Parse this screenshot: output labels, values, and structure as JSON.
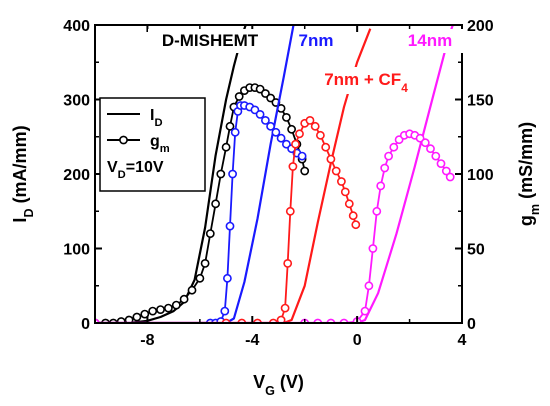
{
  "chart_data": {
    "type": "line",
    "xlabel": {
      "main": "V",
      "sub": "G",
      "unit": " (V)"
    },
    "ylabel_left": {
      "main": "I",
      "sub": "D",
      "unit": " (mA/mm)"
    },
    "ylabel_right": {
      "main": "g",
      "sub": "m",
      "unit": " (mS/mm)"
    },
    "xlim": [
      -10,
      4
    ],
    "ylim_left": [
      0,
      400
    ],
    "ylim_right": [
      0,
      200
    ],
    "x_ticks": [
      -8,
      -4,
      0,
      4
    ],
    "x_tick_labels": [
      "-8",
      "-4",
      "0",
      "4"
    ],
    "y_left_ticks": [
      0,
      100,
      200,
      300,
      400
    ],
    "y_left_tick_labels": [
      "0",
      "100",
      "200",
      "300",
      "400"
    ],
    "y_right_ticks": [
      0,
      50,
      100,
      150,
      200
    ],
    "y_right_tick_labels": [
      "0",
      "50",
      "100",
      "150",
      "200"
    ],
    "grid": false,
    "legend": {
      "placement": "left",
      "entries": [
        {
          "main": "I",
          "sub": "D",
          "style": "line"
        },
        {
          "main": "g",
          "sub": "m",
          "style": "line-circle"
        }
      ],
      "note": {
        "main": "V",
        "sub": "D",
        "tail": "=10V"
      }
    },
    "series": [
      {
        "name": "D-MISHEMT",
        "color": "#000000",
        "label": {
          "main": "D-MISHEMT"
        },
        "label_box": true,
        "id": [
          [
            -10,
            0
          ],
          [
            -9,
            0
          ],
          [
            -8.5,
            1
          ],
          [
            -8,
            3
          ],
          [
            -7.5,
            8
          ],
          [
            -7,
            16
          ],
          [
            -6.6,
            28
          ],
          [
            -6.2,
            58
          ],
          [
            -5.8,
            128
          ],
          [
            -5.4,
            225
          ],
          [
            -5.0,
            300
          ],
          [
            -4.7,
            345
          ],
          [
            -4.4,
            385
          ],
          [
            -4.2,
            405
          ]
        ],
        "gm": [
          [
            -10,
            0
          ],
          [
            -9.6,
            0
          ],
          [
            -9.3,
            0
          ],
          [
            -9.0,
            1
          ],
          [
            -8.7,
            2
          ],
          [
            -8.4,
            4
          ],
          [
            -8.1,
            6
          ],
          [
            -7.8,
            8
          ],
          [
            -7.5,
            9
          ],
          [
            -7.2,
            10
          ],
          [
            -6.9,
            12
          ],
          [
            -6.6,
            16
          ],
          [
            -6.3,
            22
          ],
          [
            -6.0,
            30
          ],
          [
            -5.8,
            40
          ],
          [
            -5.6,
            60
          ],
          [
            -5.4,
            80
          ],
          [
            -5.2,
            100
          ],
          [
            -5.0,
            118
          ],
          [
            -4.85,
            132
          ],
          [
            -4.7,
            145
          ],
          [
            -4.5,
            152
          ],
          [
            -4.3,
            156
          ],
          [
            -4.1,
            158
          ],
          [
            -3.9,
            158
          ],
          [
            -3.7,
            157
          ],
          [
            -3.5,
            154
          ],
          [
            -3.3,
            151
          ],
          [
            -3.1,
            148
          ],
          [
            -2.9,
            144
          ],
          [
            -2.7,
            138
          ],
          [
            -2.5,
            130
          ],
          [
            -2.3,
            120
          ],
          [
            -2.1,
            110
          ],
          [
            -2.0,
            102
          ]
        ]
      },
      {
        "name": "7nm",
        "color": "#1a1aff",
        "label": {
          "main": "7nm"
        },
        "label_box": false,
        "id": [
          [
            -10,
            0
          ],
          [
            -5.0,
            0
          ],
          [
            -4.7,
            6
          ],
          [
            -4.3,
            55
          ],
          [
            -3.8,
            140
          ],
          [
            -3.3,
            240
          ],
          [
            -2.8,
            330
          ],
          [
            -2.4,
            405
          ]
        ],
        "gm": [
          [
            -10,
            0
          ],
          [
            -5.6,
            0
          ],
          [
            -5.4,
            0
          ],
          [
            -5.2,
            1
          ],
          [
            -5.05,
            8
          ],
          [
            -4.95,
            30
          ],
          [
            -4.85,
            65
          ],
          [
            -4.75,
            100
          ],
          [
            -4.65,
            128
          ],
          [
            -4.55,
            142
          ],
          [
            -4.45,
            146
          ],
          [
            -4.3,
            146
          ],
          [
            -4.1,
            145
          ],
          [
            -3.9,
            143
          ],
          [
            -3.7,
            140
          ],
          [
            -3.5,
            136
          ],
          [
            -3.3,
            132
          ],
          [
            -3.1,
            128
          ],
          [
            -2.9,
            124
          ],
          [
            -2.7,
            120
          ],
          [
            -2.5,
            117
          ],
          [
            -2.3,
            114
          ],
          [
            -2.1,
            112
          ]
        ]
      },
      {
        "name": "7nm + CF4",
        "color": "#ff1a1a",
        "label": {
          "main": "7nm + CF",
          "sub": "4"
        },
        "label_box": true,
        "id": [
          [
            -10,
            0
          ],
          [
            -2.8,
            0
          ],
          [
            -2.5,
            4
          ],
          [
            -2.0,
            50
          ],
          [
            -1.5,
            135
          ],
          [
            -1.0,
            215
          ],
          [
            -0.5,
            290
          ],
          [
            0.0,
            350
          ],
          [
            0.5,
            395
          ]
        ],
        "gm": [
          [
            -10,
            0
          ],
          [
            -5.0,
            0
          ],
          [
            -4.4,
            0
          ],
          [
            -3.8,
            0
          ],
          [
            -3.2,
            0
          ],
          [
            -2.9,
            2
          ],
          [
            -2.75,
            10
          ],
          [
            -2.65,
            40
          ],
          [
            -2.55,
            75
          ],
          [
            -2.45,
            105
          ],
          [
            -2.35,
            120
          ],
          [
            -2.2,
            127
          ],
          [
            -2.0,
            134
          ],
          [
            -1.8,
            136
          ],
          [
            -1.6,
            132
          ],
          [
            -1.4,
            126
          ],
          [
            -1.2,
            118
          ],
          [
            -1.0,
            110
          ],
          [
            -0.8,
            102
          ],
          [
            -0.6,
            95
          ],
          [
            -0.45,
            88
          ],
          [
            -0.3,
            80
          ],
          [
            -0.15,
            72
          ],
          [
            -0.05,
            66
          ]
        ]
      },
      {
        "name": "14nm",
        "color": "#ff1aff",
        "label": {
          "main": "14nm"
        },
        "label_box": true,
        "id": [
          [
            -10,
            0
          ],
          [
            0.0,
            0
          ],
          [
            0.3,
            4
          ],
          [
            0.8,
            40
          ],
          [
            1.5,
            120
          ],
          [
            2.2,
            210
          ],
          [
            2.9,
            305
          ],
          [
            3.5,
            385
          ],
          [
            3.7,
            405
          ]
        ],
        "gm": [
          [
            -10,
            0
          ],
          [
            -2.0,
            0
          ],
          [
            -1.5,
            0
          ],
          [
            -1.0,
            0
          ],
          [
            -0.5,
            0
          ],
          [
            0.0,
            1
          ],
          [
            0.3,
            8
          ],
          [
            0.45,
            25
          ],
          [
            0.6,
            50
          ],
          [
            0.75,
            75
          ],
          [
            0.9,
            92
          ],
          [
            1.05,
            104
          ],
          [
            1.2,
            112
          ],
          [
            1.4,
            118
          ],
          [
            1.6,
            123
          ],
          [
            1.8,
            126
          ],
          [
            2.0,
            127
          ],
          [
            2.2,
            126
          ],
          [
            2.4,
            124
          ],
          [
            2.6,
            121
          ],
          [
            2.8,
            117
          ],
          [
            3.0,
            112
          ],
          [
            3.2,
            107
          ],
          [
            3.4,
            102
          ],
          [
            3.55,
            98
          ]
        ]
      }
    ]
  }
}
